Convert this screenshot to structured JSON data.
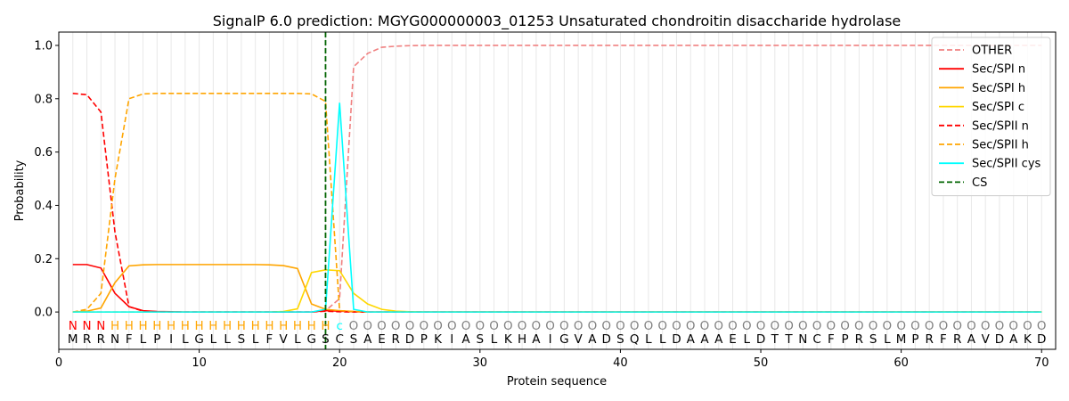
{
  "chart_data": {
    "type": "line",
    "title": "SignalP 6.0 prediction: MGYG000000003_01253 Unsaturated chondroitin disaccharide hydrolase",
    "xlabel": "Protein sequence",
    "ylabel": "Probability",
    "xlim": [
      0,
      71
    ],
    "ylim": [
      -0.14,
      1.05
    ],
    "xticks": [
      "0",
      "10",
      "20",
      "30",
      "40",
      "50",
      "60",
      "70"
    ],
    "yticks": [
      "0.0",
      "0.2",
      "0.4",
      "0.6",
      "0.8",
      "1.0"
    ],
    "grid": "vertical",
    "legend_position": "top-right",
    "sequence": [
      "M",
      "R",
      "R",
      "N",
      "F",
      "L",
      "P",
      "I",
      "L",
      "G",
      "L",
      "L",
      "S",
      "L",
      "F",
      "V",
      "L",
      "G",
      "S",
      "C",
      "S",
      "A",
      "E",
      "R",
      "D",
      "P",
      "K",
      "I",
      "A",
      "S",
      "L",
      "K",
      "H",
      "A",
      "I",
      "G",
      "V",
      "A",
      "D",
      "S",
      "Q",
      "L",
      "L",
      "D",
      "A",
      "A",
      "A",
      "E",
      "L",
      "D",
      "T",
      "T",
      "N",
      "C",
      "F",
      "P",
      "R",
      "S",
      "L",
      "M",
      "P",
      "R",
      "F",
      "R",
      "A",
      "V",
      "D",
      "A",
      "K",
      "D"
    ],
    "prediction": [
      "N",
      "N",
      "N",
      "H",
      "H",
      "H",
      "H",
      "H",
      "H",
      "H",
      "H",
      "H",
      "H",
      "H",
      "H",
      "H",
      "H",
      "H",
      "H",
      "c",
      "O",
      "O",
      "O",
      "O",
      "O",
      "O",
      "O",
      "O",
      "O",
      "O",
      "O",
      "O",
      "O",
      "O",
      "O",
      "O",
      "O",
      "O",
      "O",
      "O",
      "O",
      "O",
      "O",
      "O",
      "O",
      "O",
      "O",
      "O",
      "O",
      "O",
      "O",
      "O",
      "O",
      "O",
      "O",
      "O",
      "O",
      "O",
      "O",
      "O",
      "O",
      "O",
      "O",
      "O",
      "O",
      "O",
      "O",
      "O",
      "O",
      "O"
    ],
    "prediction_colors": {
      "N": "#ff0000",
      "H": "#ffa500",
      "c": "#00ffff",
      "O": "#808080"
    },
    "cs_position": 19,
    "series": [
      {
        "name": "OTHER",
        "color": "#f08080",
        "dash": "dashed",
        "values": [
          0,
          0,
          0,
          0,
          0,
          0,
          0,
          0,
          0,
          0,
          0,
          0,
          0,
          0,
          0,
          0,
          0,
          0,
          0.005,
          0.05,
          0.92,
          0.97,
          0.993,
          0.997,
          0.999,
          1,
          1,
          1,
          1,
          1,
          1,
          1,
          1,
          1,
          1,
          1,
          1,
          1,
          1,
          1,
          1,
          1,
          1,
          1,
          1,
          1,
          1,
          1,
          1,
          1,
          1,
          1,
          1,
          1,
          1,
          1,
          1,
          1,
          1,
          1,
          1,
          1,
          1,
          1,
          1,
          1,
          1,
          1,
          1,
          1
        ]
      },
      {
        "name": "Sec/SPI n",
        "color": "#ff0000",
        "dash": "solid",
        "values": [
          0.178,
          0.178,
          0.165,
          0.07,
          0.02,
          0.005,
          0.002,
          0.001,
          0,
          0,
          0,
          0,
          0,
          0,
          0,
          0,
          0,
          0,
          0.005,
          0.003,
          0.001,
          0,
          0,
          0,
          0,
          0,
          0,
          0,
          0,
          0,
          0,
          0,
          0,
          0,
          0,
          0,
          0,
          0,
          0,
          0,
          0,
          0,
          0,
          0,
          0,
          0,
          0,
          0,
          0,
          0,
          0,
          0,
          0,
          0,
          0,
          0,
          0,
          0,
          0,
          0,
          0,
          0,
          0,
          0,
          0,
          0,
          0,
          0,
          0,
          0
        ]
      },
      {
        "name": "Sec/SPI h",
        "color": "#ffa500",
        "dash": "solid",
        "values": [
          0,
          0.003,
          0.015,
          0.11,
          0.173,
          0.177,
          0.178,
          0.178,
          0.178,
          0.178,
          0.178,
          0.178,
          0.178,
          0.178,
          0.177,
          0.174,
          0.163,
          0.03,
          0.01,
          0.005,
          0.002,
          0,
          0,
          0,
          0,
          0,
          0,
          0,
          0,
          0,
          0,
          0,
          0,
          0,
          0,
          0,
          0,
          0,
          0,
          0,
          0,
          0,
          0,
          0,
          0,
          0,
          0,
          0,
          0,
          0,
          0,
          0,
          0,
          0,
          0,
          0,
          0,
          0,
          0,
          0,
          0,
          0,
          0,
          0,
          0,
          0,
          0,
          0,
          0,
          0
        ]
      },
      {
        "name": "Sec/SPI c",
        "color": "#ffd700",
        "dash": "solid",
        "values": [
          0,
          0,
          0,
          0,
          0,
          0,
          0,
          0,
          0,
          0,
          0,
          0,
          0,
          0,
          0,
          0.002,
          0.012,
          0.148,
          0.158,
          0.155,
          0.07,
          0.03,
          0.01,
          0.003,
          0.001,
          0,
          0,
          0,
          0,
          0,
          0,
          0,
          0,
          0,
          0,
          0,
          0,
          0,
          0,
          0,
          0,
          0,
          0,
          0,
          0,
          0,
          0,
          0,
          0,
          0,
          0,
          0,
          0,
          0,
          0,
          0,
          0,
          0,
          0,
          0,
          0,
          0,
          0,
          0,
          0,
          0,
          0,
          0,
          0,
          0
        ]
      },
      {
        "name": "Sec/SPII n",
        "color": "#ff0000",
        "dash": "dashed",
        "values": [
          0.82,
          0.815,
          0.75,
          0.3,
          0.02,
          0.003,
          0.001,
          0,
          0,
          0,
          0,
          0,
          0,
          0,
          0,
          0,
          0,
          0,
          0.003,
          0.001,
          0,
          0,
          0,
          0,
          0,
          0,
          0,
          0,
          0,
          0,
          0,
          0,
          0,
          0,
          0,
          0,
          0,
          0,
          0,
          0,
          0,
          0,
          0,
          0,
          0,
          0,
          0,
          0,
          0,
          0,
          0,
          0,
          0,
          0,
          0,
          0,
          0,
          0,
          0,
          0,
          0,
          0,
          0,
          0,
          0,
          0,
          0,
          0,
          0,
          0
        ]
      },
      {
        "name": "Sec/SPII h",
        "color": "#ffa500",
        "dash": "dashed",
        "values": [
          0,
          0.01,
          0.07,
          0.5,
          0.8,
          0.818,
          0.82,
          0.82,
          0.82,
          0.82,
          0.82,
          0.82,
          0.82,
          0.82,
          0.82,
          0.82,
          0.82,
          0.818,
          0.79,
          0.005,
          0.002,
          0,
          0,
          0,
          0,
          0,
          0,
          0,
          0,
          0,
          0,
          0,
          0,
          0,
          0,
          0,
          0,
          0,
          0,
          0,
          0,
          0,
          0,
          0,
          0,
          0,
          0,
          0,
          0,
          0,
          0,
          0,
          0,
          0,
          0,
          0,
          0,
          0,
          0,
          0,
          0,
          0,
          0,
          0,
          0,
          0,
          0,
          0,
          0,
          0
        ]
      },
      {
        "name": "Sec/SPII cys",
        "color": "#00ffff",
        "dash": "solid",
        "values": [
          0,
          0,
          0,
          0,
          0,
          0,
          0,
          0,
          0,
          0,
          0,
          0,
          0,
          0,
          0,
          0,
          0,
          0,
          0.01,
          0.785,
          0.01,
          0,
          0,
          0,
          0,
          0,
          0,
          0,
          0,
          0,
          0,
          0,
          0,
          0,
          0,
          0,
          0,
          0,
          0,
          0,
          0,
          0,
          0,
          0,
          0,
          0,
          0,
          0,
          0,
          0,
          0,
          0,
          0,
          0,
          0,
          0,
          0,
          0,
          0,
          0,
          0,
          0,
          0,
          0,
          0,
          0,
          0,
          0,
          0,
          0
        ]
      }
    ],
    "legend": [
      {
        "label": "OTHER",
        "color": "#f08080",
        "dash": "dashed"
      },
      {
        "label": "Sec/SPI n",
        "color": "#ff0000",
        "dash": "solid"
      },
      {
        "label": "Sec/SPI h",
        "color": "#ffa500",
        "dash": "solid"
      },
      {
        "label": "Sec/SPI c",
        "color": "#ffd700",
        "dash": "solid"
      },
      {
        "label": "Sec/SPII n",
        "color": "#ff0000",
        "dash": "dashed"
      },
      {
        "label": "Sec/SPII h",
        "color": "#ffa500",
        "dash": "dashed"
      },
      {
        "label": "Sec/SPII cys",
        "color": "#00ffff",
        "dash": "solid"
      },
      {
        "label": "CS",
        "color": "#006400",
        "dash": "dashed"
      }
    ]
  }
}
